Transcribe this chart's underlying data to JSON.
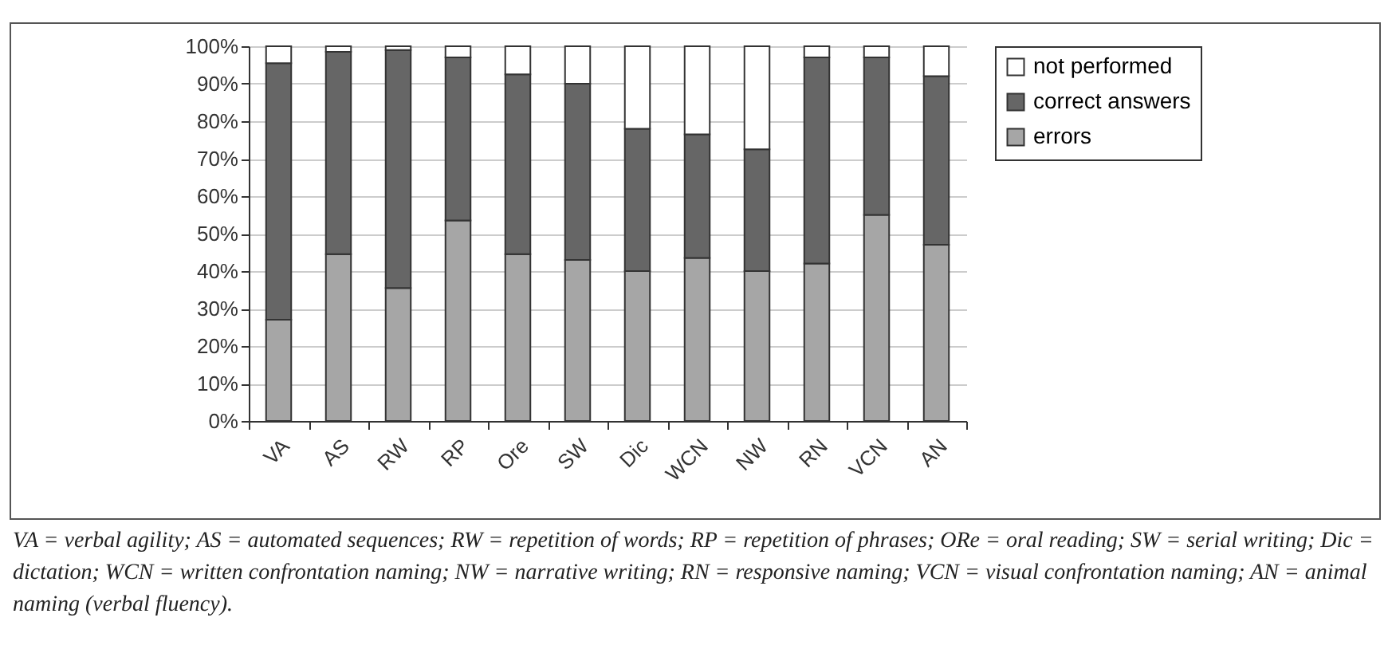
{
  "chart_data": {
    "type": "bar",
    "stacked": true,
    "categories": [
      "VA",
      "AS",
      "RW",
      "RP",
      "Ore",
      "SW",
      "Dic",
      "WCN",
      "NW",
      "RN",
      "VCN",
      "AN"
    ],
    "series": [
      {
        "name": "errors",
        "color": "#a6a6a6",
        "values": [
          27,
          44.5,
          35.5,
          53.5,
          44.5,
          43,
          40,
          43.5,
          40,
          42,
          55,
          47
        ]
      },
      {
        "name": "correct answers",
        "color": "#666666",
        "values": [
          68.5,
          54,
          63.5,
          43.5,
          48,
          47,
          38,
          33,
          32.5,
          55,
          42,
          45
        ]
      },
      {
        "name": "not performed",
        "color": "#ffffff",
        "values": [
          4.5,
          1.5,
          1,
          3,
          7.5,
          10,
          22,
          23.5,
          27.5,
          3,
          3,
          8
        ]
      }
    ],
    "ylim": [
      0,
      100
    ],
    "yticks": [
      {
        "value": 0,
        "label": "0%"
      },
      {
        "value": 10,
        "label": "10%"
      },
      {
        "value": 20,
        "label": "20%"
      },
      {
        "value": 30,
        "label": "30%"
      },
      {
        "value": 40,
        "label": "40%"
      },
      {
        "value": 50,
        "label": "50%"
      },
      {
        "value": 60,
        "label": "60%"
      },
      {
        "value": 70,
        "label": "70%"
      },
      {
        "value": 80,
        "label": "80%"
      },
      {
        "value": 90,
        "label": "90%"
      },
      {
        "value": 100,
        "label": "100%"
      }
    ],
    "grid": "y",
    "legend": "right",
    "annotations": [
      "VA = verbal agility; AS = automated sequences; RW = repetition of words; RP = repetition of phrases; ORe = oral reading; SW = serial writing; Dic = dictation; WCN = written confrontation naming; NW = narrative writing; RN = responsive naming; VCN = visual confrontation naming; AN = animal naming (verbal fluency)."
    ]
  }
}
